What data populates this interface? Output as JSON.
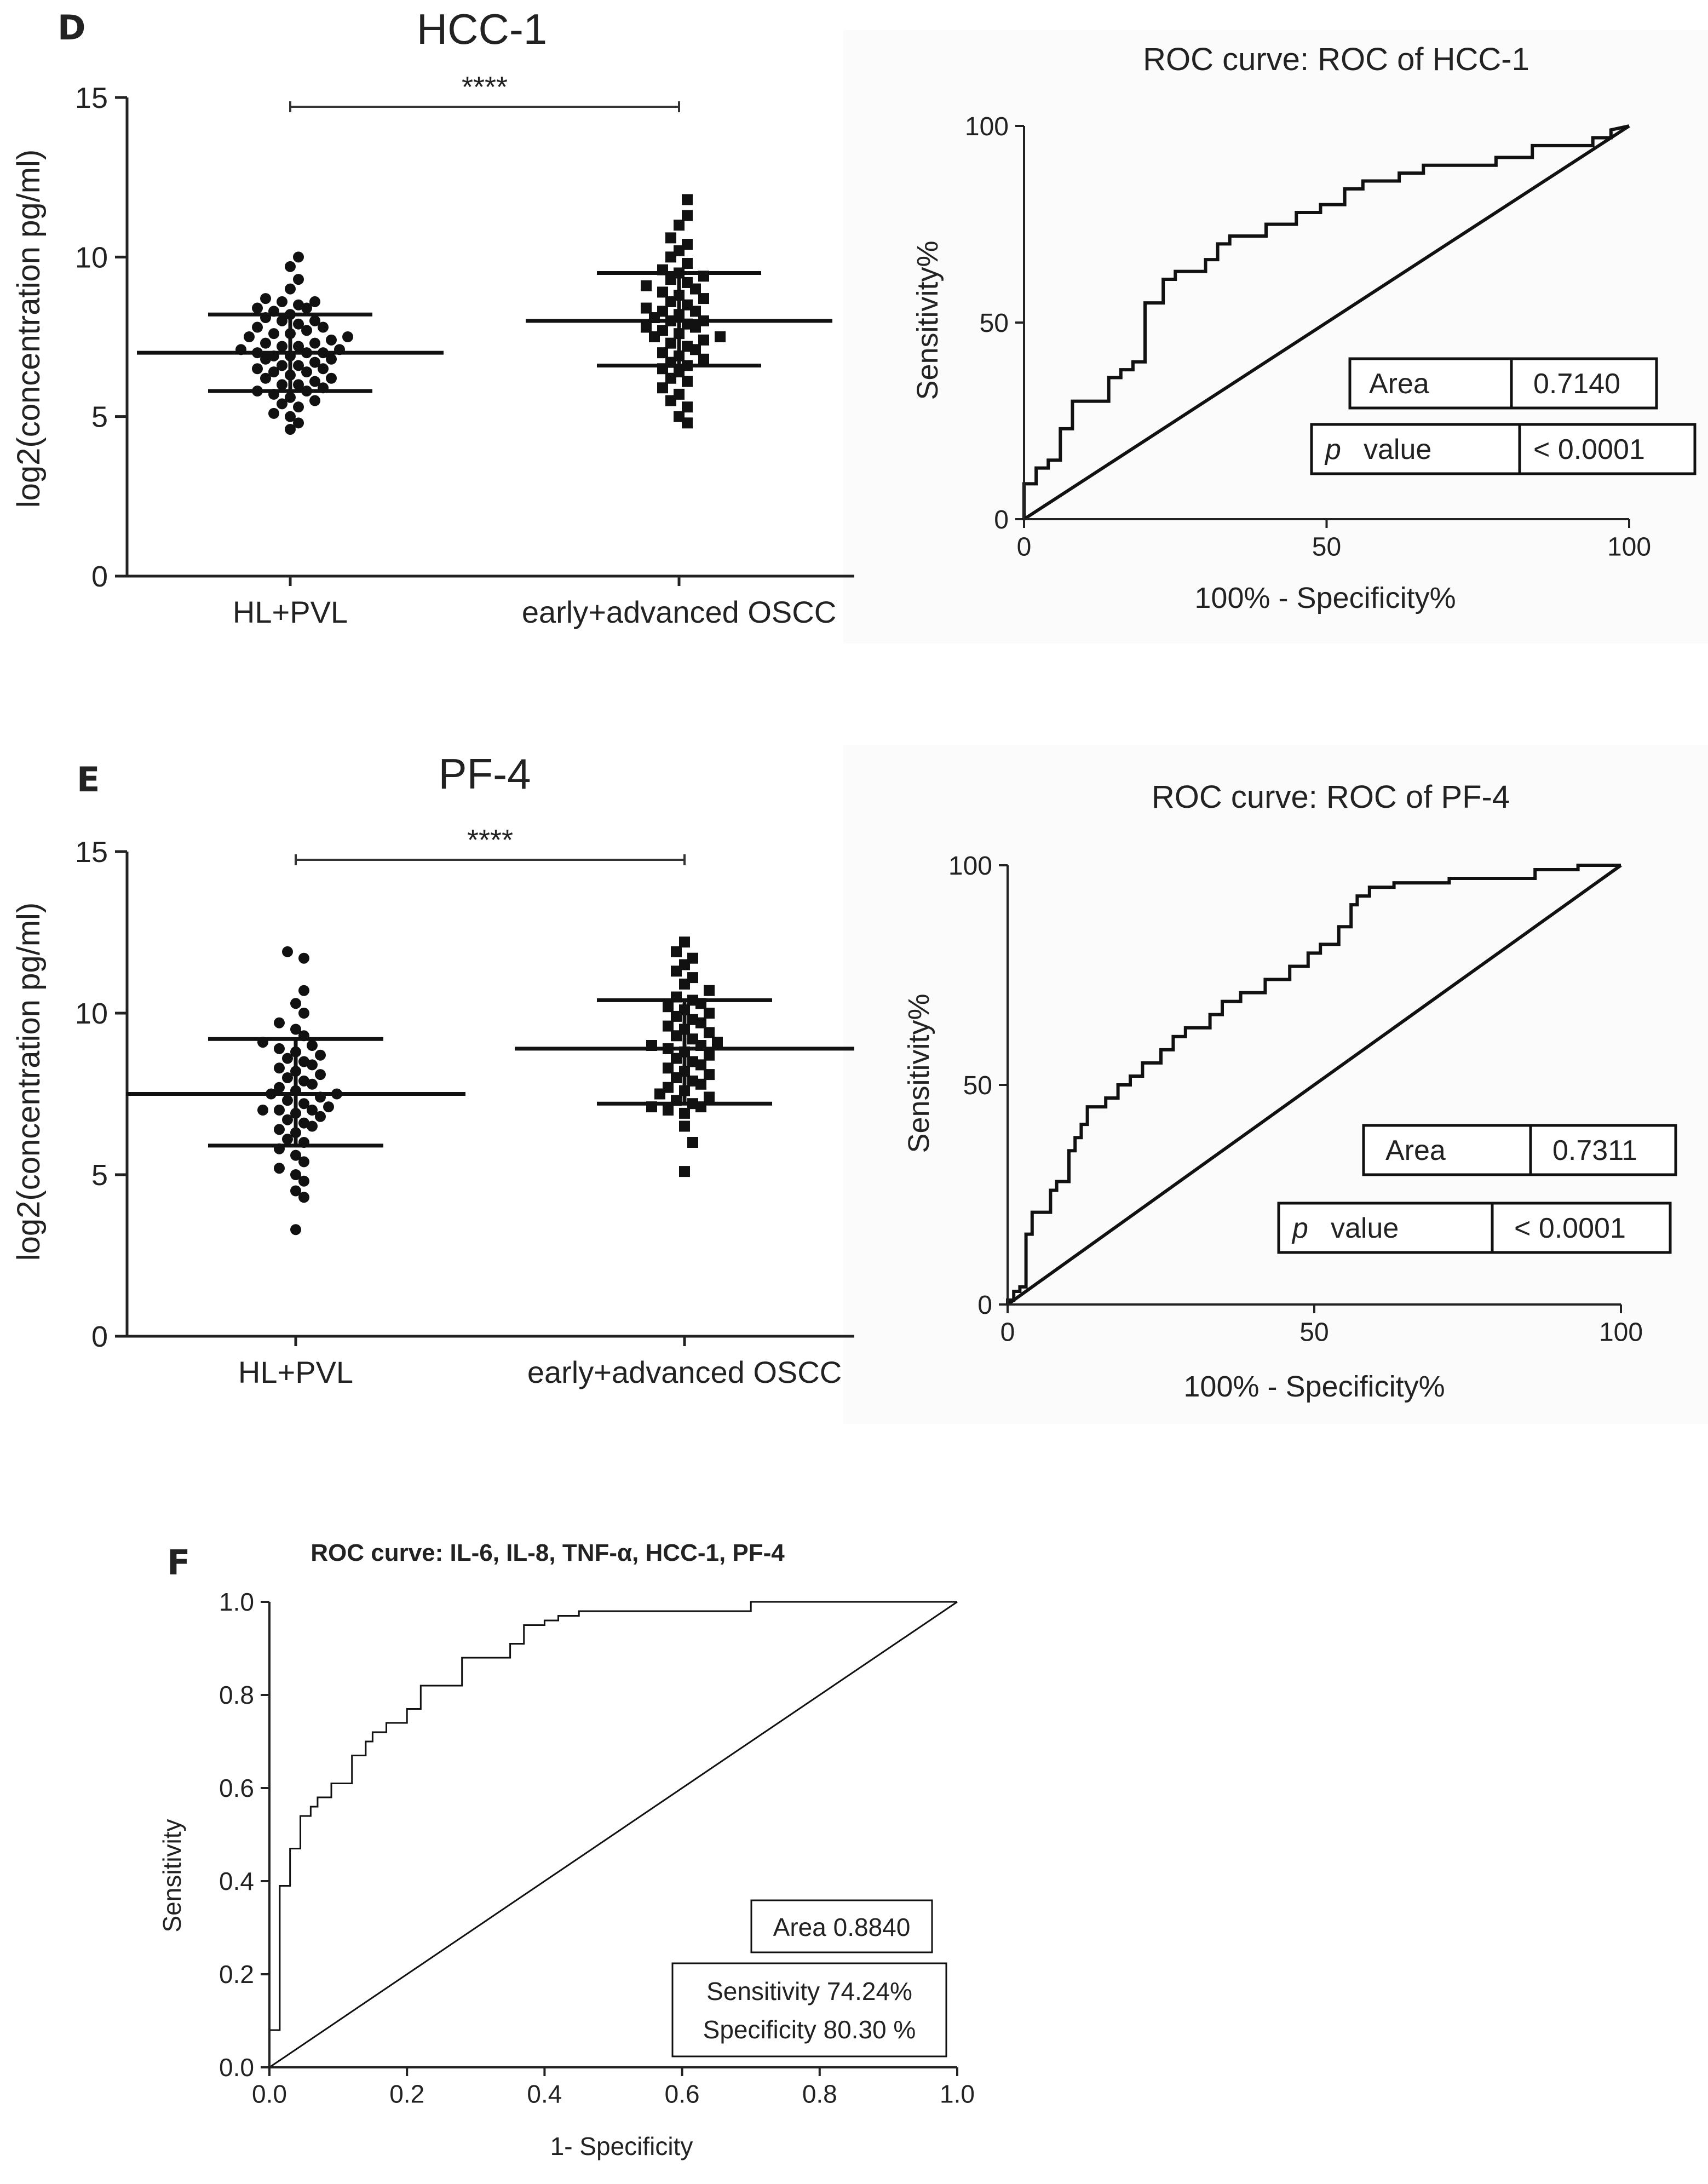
{
  "chart_data": [
    {
      "id": "D_scatter",
      "type": "scatter",
      "panel_letter": "D",
      "title": "HCC-1",
      "ylabel": "log2(concentration pg/ml)",
      "ylim": [
        0,
        15
      ],
      "yticks": [
        0,
        5,
        10,
        15
      ],
      "categories": [
        "HL+PVL",
        "early+advanced OSCC"
      ],
      "significance": "****",
      "groups": [
        {
          "name": "HL+PVL",
          "marker": "circle",
          "mean": 7.0,
          "sd_low": 5.8,
          "sd_high": 8.2,
          "values": [
            4.6,
            4.8,
            5.0,
            5.1,
            5.3,
            5.4,
            5.5,
            5.6,
            5.7,
            5.8,
            5.8,
            5.9,
            6.0,
            6.0,
            6.1,
            6.2,
            6.2,
            6.3,
            6.4,
            6.4,
            6.5,
            6.5,
            6.6,
            6.6,
            6.7,
            6.8,
            6.8,
            6.9,
            6.9,
            7.0,
            7.0,
            7.0,
            7.1,
            7.1,
            7.2,
            7.2,
            7.3,
            7.3,
            7.4,
            7.5,
            7.5,
            7.6,
            7.6,
            7.7,
            7.8,
            7.8,
            7.9,
            8.0,
            8.0,
            8.1,
            8.2,
            8.3,
            8.4,
            8.4,
            8.5,
            8.6,
            8.6,
            8.7,
            9.0,
            9.3,
            9.7,
            10.0
          ]
        },
        {
          "name": "early+advanced OSCC",
          "marker": "square",
          "mean": 8.0,
          "sd_low": 6.6,
          "sd_high": 9.5,
          "values": [
            4.8,
            5.0,
            5.3,
            5.5,
            5.7,
            5.9,
            6.1,
            6.2,
            6.4,
            6.5,
            6.6,
            6.7,
            6.8,
            6.9,
            7.0,
            7.1,
            7.2,
            7.3,
            7.4,
            7.5,
            7.5,
            7.6,
            7.7,
            7.8,
            7.8,
            7.9,
            8.0,
            8.0,
            8.1,
            8.2,
            8.3,
            8.3,
            8.4,
            8.5,
            8.6,
            8.7,
            8.8,
            8.9,
            9.0,
            9.1,
            9.2,
            9.3,
            9.4,
            9.5,
            9.6,
            9.8,
            10.0,
            10.2,
            10.4,
            10.6,
            11.0,
            11.3,
            11.8
          ]
        }
      ]
    },
    {
      "id": "D_roc",
      "type": "line",
      "title": "ROC curve: ROC of HCC-1",
      "xlabel": "100% - Specificity%",
      "ylabel": "Sensitivity%",
      "xlim": [
        0,
        100
      ],
      "ylim": [
        0,
        100
      ],
      "xticks": [
        0,
        50,
        100
      ],
      "yticks": [
        0,
        50,
        100
      ],
      "area_label": "Area",
      "area_value": "0.7140",
      "p_label_italic": "p",
      "p_label_rest": "value",
      "p_value": "< 0.0001",
      "points": [
        [
          0,
          0
        ],
        [
          0,
          9
        ],
        [
          2,
          9
        ],
        [
          2,
          13
        ],
        [
          4,
          13
        ],
        [
          4,
          15
        ],
        [
          6,
          15
        ],
        [
          6,
          23
        ],
        [
          8,
          23
        ],
        [
          8,
          30
        ],
        [
          14,
          30
        ],
        [
          14,
          36
        ],
        [
          16,
          36
        ],
        [
          16,
          38
        ],
        [
          18,
          38
        ],
        [
          18,
          40
        ],
        [
          20,
          40
        ],
        [
          20,
          55
        ],
        [
          23,
          55
        ],
        [
          23,
          61
        ],
        [
          25,
          61
        ],
        [
          25,
          63
        ],
        [
          30,
          63
        ],
        [
          30,
          66
        ],
        [
          32,
          66
        ],
        [
          32,
          70
        ],
        [
          34,
          70
        ],
        [
          34,
          72
        ],
        [
          40,
          72
        ],
        [
          40,
          75
        ],
        [
          45,
          75
        ],
        [
          45,
          78
        ],
        [
          49,
          78
        ],
        [
          49,
          80
        ],
        [
          53,
          80
        ],
        [
          53,
          84
        ],
        [
          56,
          84
        ],
        [
          56,
          86
        ],
        [
          62,
          86
        ],
        [
          62,
          88
        ],
        [
          66,
          88
        ],
        [
          66,
          90
        ],
        [
          78,
          90
        ],
        [
          78,
          92
        ],
        [
          84,
          92
        ],
        [
          84,
          95
        ],
        [
          94,
          95
        ],
        [
          94,
          97
        ],
        [
          97,
          97
        ],
        [
          97,
          99
        ],
        [
          100,
          100
        ]
      ]
    },
    {
      "id": "E_scatter",
      "type": "scatter",
      "panel_letter": "E",
      "title": "PF-4",
      "ylabel": "log2(concentration pg/ml)",
      "ylim": [
        0,
        15
      ],
      "yticks": [
        0,
        5,
        10,
        15
      ],
      "categories": [
        "HL+PVL",
        "early+advanced OSCC"
      ],
      "significance": "****",
      "groups": [
        {
          "name": "HL+PVL",
          "marker": "circle",
          "mean": 7.5,
          "sd_low": 5.9,
          "sd_high": 9.2,
          "values": [
            3.3,
            4.3,
            4.5,
            4.8,
            5.0,
            5.2,
            5.4,
            5.6,
            5.8,
            6.0,
            6.1,
            6.3,
            6.4,
            6.5,
            6.6,
            6.7,
            6.8,
            6.9,
            7.0,
            7.0,
            7.0,
            7.1,
            7.2,
            7.3,
            7.4,
            7.5,
            7.5,
            7.6,
            7.7,
            7.8,
            7.9,
            8.0,
            8.1,
            8.2,
            8.3,
            8.4,
            8.5,
            8.6,
            8.7,
            8.8,
            8.9,
            9.0,
            9.1,
            9.3,
            9.5,
            9.7,
            10.0,
            10.3,
            10.7,
            11.7,
            11.9
          ]
        },
        {
          "name": "early+advanced OSCC",
          "marker": "square",
          "mean": 8.9,
          "sd_low": 7.2,
          "sd_high": 10.4,
          "values": [
            5.1,
            6.0,
            6.5,
            6.9,
            7.0,
            7.1,
            7.1,
            7.2,
            7.3,
            7.4,
            7.5,
            7.6,
            7.7,
            7.8,
            7.9,
            8.0,
            8.1,
            8.2,
            8.3,
            8.4,
            8.5,
            8.6,
            8.7,
            8.8,
            8.9,
            9.0,
            9.0,
            9.1,
            9.2,
            9.3,
            9.4,
            9.5,
            9.6,
            9.7,
            9.8,
            9.9,
            10.0,
            10.1,
            10.2,
            10.3,
            10.4,
            10.5,
            10.7,
            10.9,
            11.1,
            11.3,
            11.5,
            11.7,
            11.9,
            12.2
          ]
        }
      ]
    },
    {
      "id": "E_roc",
      "type": "line",
      "title": "ROC curve: ROC of PF-4",
      "xlabel": "100% - Specificity%",
      "ylabel": "Sensitivity%",
      "xlim": [
        0,
        100
      ],
      "ylim": [
        0,
        100
      ],
      "xticks": [
        0,
        50,
        100
      ],
      "yticks": [
        0,
        50,
        100
      ],
      "area_label": "Area",
      "area_value": "0.7311",
      "p_label_italic": "p",
      "p_label_rest": "value",
      "p_value": "< 0.0001",
      "points": [
        [
          0,
          0
        ],
        [
          0,
          1
        ],
        [
          1,
          1
        ],
        [
          1,
          3
        ],
        [
          2,
          3
        ],
        [
          2,
          4
        ],
        [
          3,
          4
        ],
        [
          3,
          16
        ],
        [
          4,
          16
        ],
        [
          4,
          21
        ],
        [
          7,
          21
        ],
        [
          7,
          26
        ],
        [
          8,
          26
        ],
        [
          8,
          28
        ],
        [
          10,
          28
        ],
        [
          10,
          35
        ],
        [
          11,
          35
        ],
        [
          11,
          38
        ],
        [
          12,
          38
        ],
        [
          12,
          41
        ],
        [
          13,
          41
        ],
        [
          13,
          45
        ],
        [
          16,
          45
        ],
        [
          16,
          47
        ],
        [
          18,
          47
        ],
        [
          18,
          50
        ],
        [
          20,
          50
        ],
        [
          20,
          52
        ],
        [
          22,
          52
        ],
        [
          22,
          55
        ],
        [
          25,
          55
        ],
        [
          25,
          58
        ],
        [
          27,
          58
        ],
        [
          27,
          61
        ],
        [
          29,
          61
        ],
        [
          29,
          63
        ],
        [
          33,
          63
        ],
        [
          33,
          66
        ],
        [
          35,
          66
        ],
        [
          35,
          69
        ],
        [
          38,
          69
        ],
        [
          38,
          71
        ],
        [
          42,
          71
        ],
        [
          42,
          74
        ],
        [
          46,
          74
        ],
        [
          46,
          77
        ],
        [
          49,
          77
        ],
        [
          49,
          80
        ],
        [
          51,
          80
        ],
        [
          51,
          82
        ],
        [
          54,
          82
        ],
        [
          54,
          86
        ],
        [
          56,
          86
        ],
        [
          56,
          91
        ],
        [
          57,
          91
        ],
        [
          57,
          93
        ],
        [
          59,
          93
        ],
        [
          59,
          95
        ],
        [
          63,
          95
        ],
        [
          63,
          96
        ],
        [
          72,
          96
        ],
        [
          72,
          97
        ],
        [
          86,
          97
        ],
        [
          86,
          99
        ],
        [
          93,
          99
        ],
        [
          93,
          100
        ],
        [
          100,
          100
        ]
      ]
    },
    {
      "id": "F_roc",
      "type": "line",
      "panel_letter": "F",
      "title": "ROC curve: IL-6, IL-8, TNF-α, HCC-1, PF-4",
      "xlabel": "1- Specificity",
      "ylabel": "Sensitivity",
      "xlim": [
        0,
        1
      ],
      "ylim": [
        0,
        1
      ],
      "xticks": [
        "0.0",
        "0.2",
        "0.4",
        "0.6",
        "0.8",
        "1.0"
      ],
      "yticks": [
        "0.0",
        "0.2",
        "0.4",
        "0.6",
        "0.8",
        "1.0"
      ],
      "area_text": "Area  0.8840",
      "sensitivity_text": "Sensitivity 74.24%",
      "specificity_text": "Specificity 80.30 %",
      "points": [
        [
          0,
          0
        ],
        [
          0,
          0.08
        ],
        [
          0.015,
          0.08
        ],
        [
          0.015,
          0.39
        ],
        [
          0.03,
          0.39
        ],
        [
          0.03,
          0.47
        ],
        [
          0.045,
          0.47
        ],
        [
          0.045,
          0.54
        ],
        [
          0.06,
          0.54
        ],
        [
          0.06,
          0.56
        ],
        [
          0.07,
          0.56
        ],
        [
          0.07,
          0.58
        ],
        [
          0.09,
          0.58
        ],
        [
          0.09,
          0.61
        ],
        [
          0.12,
          0.61
        ],
        [
          0.12,
          0.67
        ],
        [
          0.14,
          0.67
        ],
        [
          0.14,
          0.7
        ],
        [
          0.15,
          0.7
        ],
        [
          0.15,
          0.72
        ],
        [
          0.17,
          0.72
        ],
        [
          0.17,
          0.74
        ],
        [
          0.2,
          0.74
        ],
        [
          0.2,
          0.77
        ],
        [
          0.22,
          0.77
        ],
        [
          0.22,
          0.82
        ],
        [
          0.28,
          0.82
        ],
        [
          0.28,
          0.88
        ],
        [
          0.35,
          0.88
        ],
        [
          0.35,
          0.91
        ],
        [
          0.37,
          0.91
        ],
        [
          0.37,
          0.95
        ],
        [
          0.4,
          0.95
        ],
        [
          0.4,
          0.96
        ],
        [
          0.42,
          0.96
        ],
        [
          0.42,
          0.97
        ],
        [
          0.45,
          0.97
        ],
        [
          0.45,
          0.98
        ],
        [
          0.7,
          0.98
        ],
        [
          0.7,
          1.0
        ],
        [
          1.0,
          1.0
        ]
      ]
    }
  ]
}
